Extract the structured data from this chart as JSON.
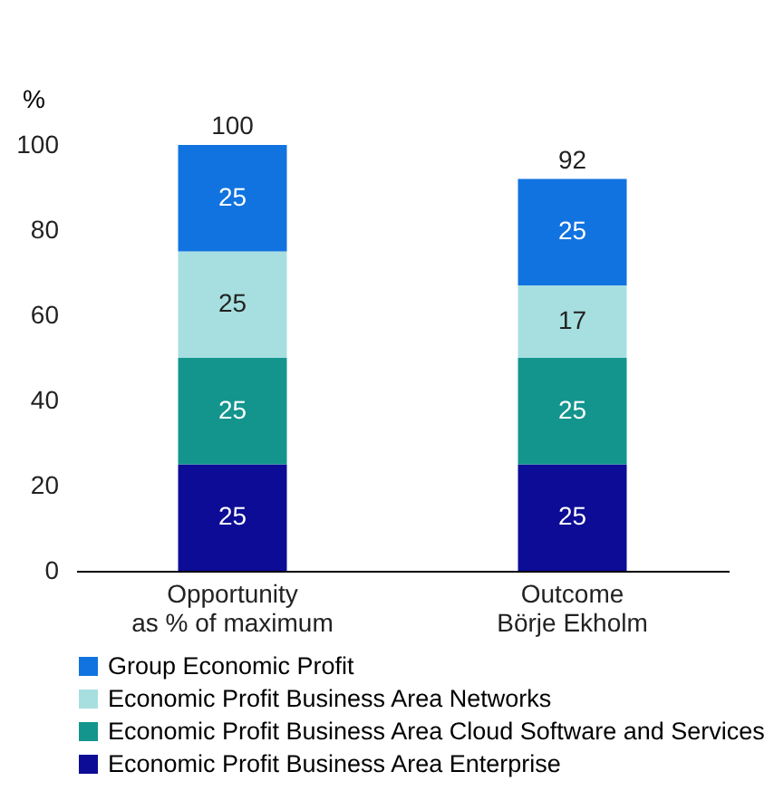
{
  "chart_data": {
    "type": "bar",
    "stacked": true,
    "ylabel": "%",
    "categories": [
      "Opportunity\nas % of maximum",
      "Outcome\nBörje Ekholm"
    ],
    "series": [
      {
        "name": "Economic Profit Business Area Enterprise",
        "color": "#0c0c96",
        "values": [
          25,
          25
        ]
      },
      {
        "name": "Economic Profit Business Area Cloud Software and Services",
        "color": "#13958e",
        "values": [
          25,
          25
        ]
      },
      {
        "name": "Economic Profit Business Area Networks",
        "color": "#a7dfe0",
        "values": [
          25,
          17
        ]
      },
      {
        "name": "Group Economic Profit",
        "color": "#1173e0",
        "values": [
          25,
          25
        ]
      }
    ],
    "totals": [
      "100",
      "92"
    ],
    "data_labels": true,
    "ylim": [
      0,
      100
    ],
    "yticks": [
      0,
      20,
      40,
      60,
      80,
      100
    ],
    "grid": false,
    "legend": "bottom"
  }
}
